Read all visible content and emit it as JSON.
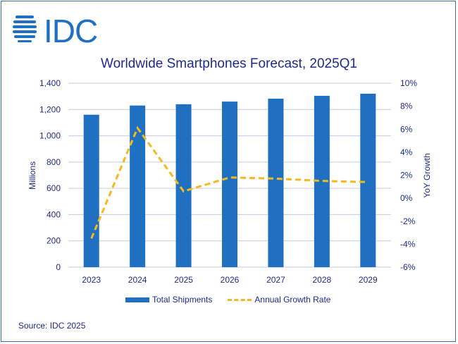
{
  "logo": {
    "text": "IDC",
    "color": "#1f70c1"
  },
  "chart_data": {
    "type": "bar+line",
    "title": "Worldwide Smartphones Forecast, 2025Q1",
    "categories": [
      "2023",
      "2024",
      "2025",
      "2026",
      "2027",
      "2028",
      "2029"
    ],
    "series": [
      {
        "name": "Total Shipments",
        "type": "bar",
        "axis": "left",
        "color": "#1f70c1",
        "values": [
          1160,
          1230,
          1240,
          1260,
          1282,
          1304,
          1320
        ]
      },
      {
        "name": "Annual Growth Rate",
        "type": "line",
        "style": "dashed",
        "axis": "right",
        "color": "#f5b91e",
        "values": [
          -3.5,
          6.1,
          0.6,
          1.8,
          1.7,
          1.5,
          1.4
        ]
      }
    ],
    "ylabel": "Millions",
    "y2label": "YoY Growth",
    "ylim": [
      0,
      1400
    ],
    "y2lim": [
      -6,
      10
    ],
    "yticks": [
      "0",
      "200",
      "400",
      "600",
      "800",
      "1,000",
      "1,200",
      "1,400"
    ],
    "y2ticks": [
      "-6%",
      "-4%",
      "-2%",
      "0%",
      "2%",
      "4%",
      "6%",
      "8%",
      "10%"
    ],
    "grid": true,
    "legend": "bottom"
  },
  "source": "Source: IDC 2025"
}
